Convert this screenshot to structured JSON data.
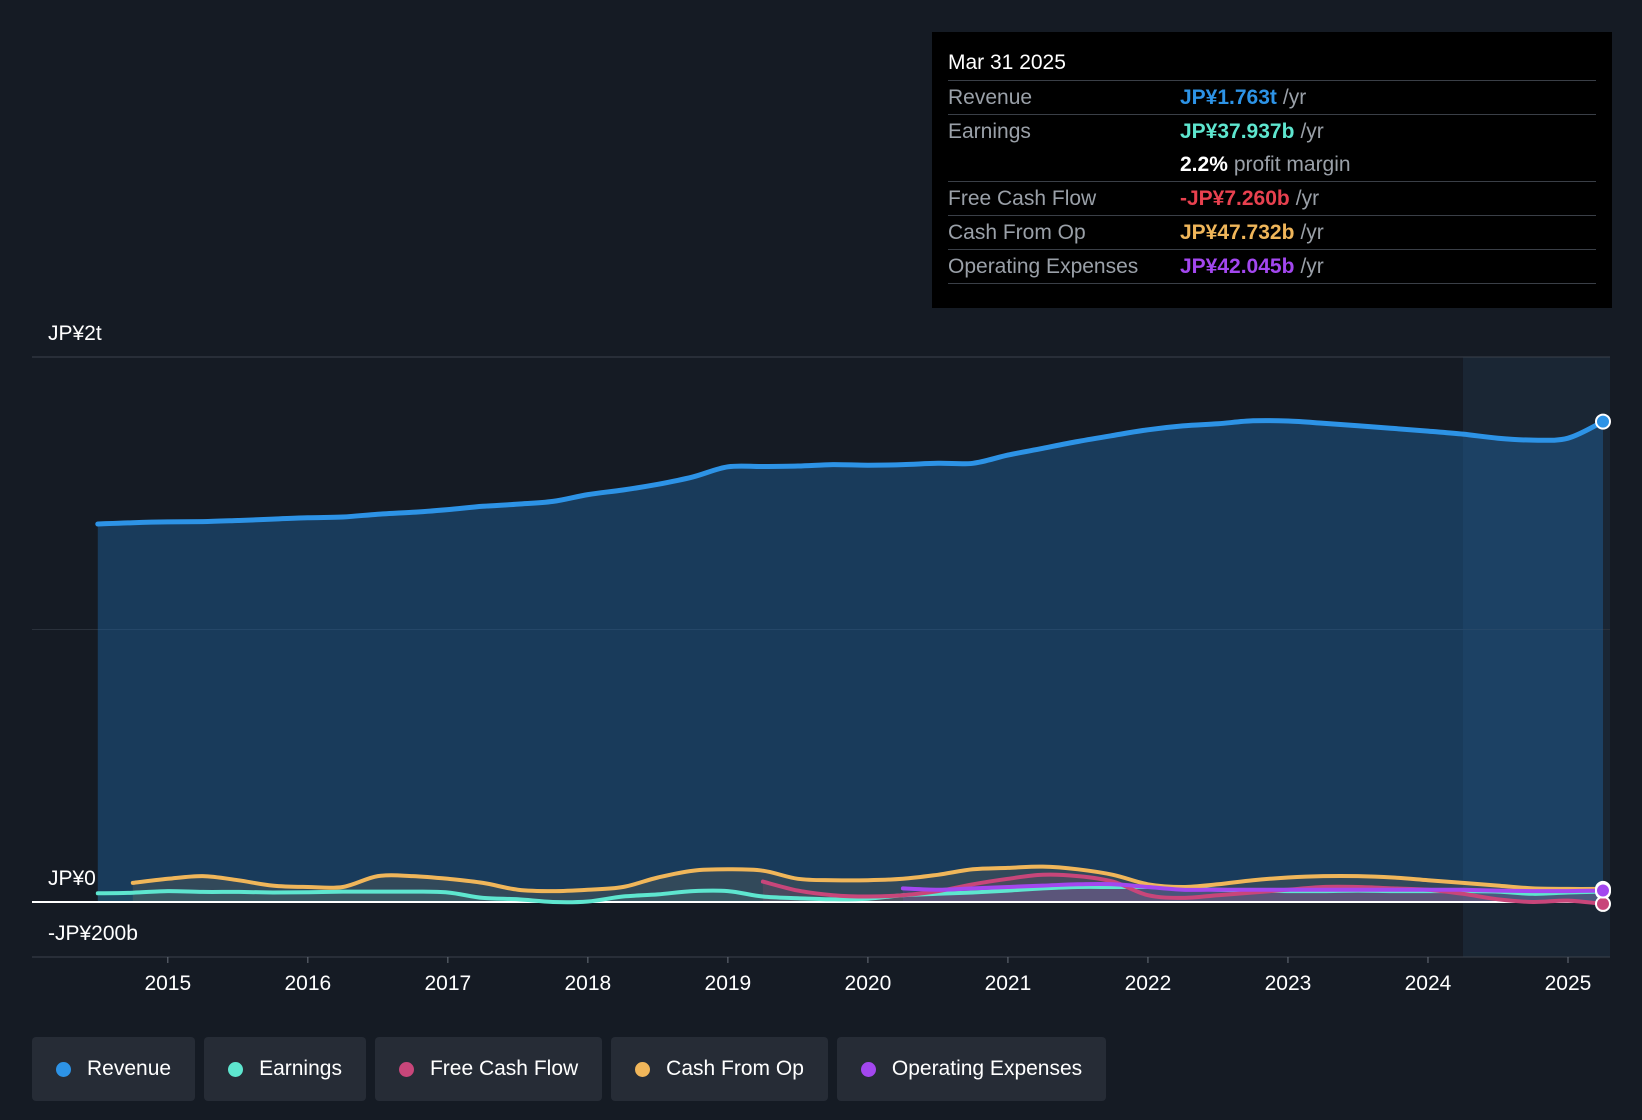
{
  "tooltip": {
    "date": "Mar 31 2025",
    "rows": [
      {
        "label": "Revenue",
        "value": "JP¥1.763t",
        "unit": "/yr",
        "color": "#2d93e6"
      },
      {
        "label": "Earnings",
        "value": "JP¥37.937b",
        "unit": "/yr",
        "color": "#5ee6cf"
      },
      {
        "label": "",
        "value": "2.2%",
        "unit": "profit margin",
        "color": "#ffffff"
      },
      {
        "label": "Free Cash Flow",
        "value": "-JP¥7.260b",
        "unit": "/yr",
        "color": "#e8414f"
      },
      {
        "label": "Cash From Op",
        "value": "JP¥47.732b",
        "unit": "/yr",
        "color": "#f0b65a"
      },
      {
        "label": "Operating Expenses",
        "value": "JP¥42.045b",
        "unit": "/yr",
        "color": "#a347ef"
      }
    ]
  },
  "legend": [
    {
      "label": "Revenue",
      "color": "#2d93e6"
    },
    {
      "label": "Earnings",
      "color": "#5ee6cf"
    },
    {
      "label": "Free Cash Flow",
      "color": "#c8467a"
    },
    {
      "label": "Cash From Op",
      "color": "#f0b65a"
    },
    {
      "label": "Operating Expenses",
      "color": "#a347ef"
    }
  ],
  "chart_data": {
    "type": "area",
    "title": "",
    "xlabel": "",
    "ylabel": "",
    "x_ticks": [
      "2015",
      "2016",
      "2017",
      "2018",
      "2019",
      "2020",
      "2021",
      "2022",
      "2023",
      "2024",
      "2025"
    ],
    "y_tick_labels": [
      {
        "label": "JP¥2t",
        "value": 2000
      },
      {
        "label": "JP¥0",
        "value": 0
      },
      {
        "label": "-JP¥200b",
        "value": -200
      }
    ],
    "xlim": [
      2014.03,
      2025.3
    ],
    "ylim": [
      -200,
      2000
    ],
    "units": "JP¥ billions",
    "forecast_start": 2024.25,
    "series": [
      {
        "name": "Revenue",
        "color": "#2d93e6",
        "x": [
          2014.5,
          2014.75,
          2015.0,
          2015.25,
          2015.5,
          2015.75,
          2016.0,
          2016.25,
          2016.5,
          2016.75,
          2017.0,
          2017.25,
          2017.5,
          2017.75,
          2018.0,
          2018.25,
          2018.5,
          2018.75,
          2019.0,
          2019.25,
          2019.5,
          2019.75,
          2020.0,
          2020.25,
          2020.5,
          2020.75,
          2021.0,
          2021.25,
          2021.5,
          2021.75,
          2022.0,
          2022.25,
          2022.5,
          2022.75,
          2023.0,
          2023.25,
          2023.5,
          2023.75,
          2024.0,
          2024.25,
          2024.5,
          2024.75,
          2025.0,
          2025.25
        ],
        "values": [
          1387,
          1392,
          1395,
          1396,
          1400,
          1405,
          1410,
          1413,
          1423,
          1430,
          1440,
          1452,
          1460,
          1470,
          1495,
          1512,
          1533,
          1560,
          1597,
          1598,
          1600,
          1605,
          1603,
          1605,
          1610,
          1610,
          1640,
          1665,
          1690,
          1712,
          1733,
          1747,
          1755,
          1766,
          1765,
          1757,
          1748,
          1738,
          1728,
          1717,
          1702,
          1695,
          1702,
          1763
        ]
      },
      {
        "name": "Earnings",
        "color": "#5ee6cf",
        "x": [
          2014.5,
          2014.75,
          2015.0,
          2015.25,
          2015.5,
          2015.75,
          2016.0,
          2016.25,
          2016.5,
          2016.75,
          2017.0,
          2017.25,
          2017.5,
          2017.75,
          2018.0,
          2018.25,
          2018.5,
          2018.75,
          2019.0,
          2019.25,
          2019.5,
          2019.75,
          2020.0,
          2020.25,
          2020.5,
          2020.75,
          2021.0,
          2021.25,
          2021.5,
          2021.75,
          2022.0,
          2022.25,
          2022.5,
          2022.75,
          2023.0,
          2023.25,
          2023.5,
          2023.75,
          2024.0,
          2024.25,
          2024.5,
          2024.75,
          2025.0,
          2025.25
        ],
        "values": [
          32,
          34,
          40,
          37,
          37,
          35,
          36,
          38,
          38,
          38,
          35,
          15,
          10,
          0,
          2,
          20,
          28,
          40,
          40,
          20,
          14,
          10,
          12,
          25,
          30,
          35,
          42,
          50,
          55,
          55,
          55,
          50,
          45,
          42,
          40,
          40,
          42,
          40,
          40,
          40,
          38,
          30,
          35,
          38
        ]
      },
      {
        "name": "Free Cash Flow",
        "color": "#c8467a",
        "x": [
          2019.25,
          2019.5,
          2019.75,
          2020.0,
          2020.25,
          2020.5,
          2020.75,
          2021.0,
          2021.25,
          2021.5,
          2021.75,
          2022.0,
          2022.25,
          2022.5,
          2022.75,
          2023.0,
          2023.25,
          2023.5,
          2023.75,
          2024.0,
          2024.25,
          2024.5,
          2024.75,
          2025.0,
          2025.25
        ],
        "values": [
          75,
          42,
          25,
          20,
          25,
          40,
          65,
          85,
          100,
          95,
          75,
          25,
          15,
          25,
          35,
          45,
          55,
          55,
          50,
          45,
          30,
          10,
          0,
          5,
          -7
        ]
      },
      {
        "name": "Cash From Op",
        "color": "#f0b65a",
        "x": [
          2014.75,
          2015.0,
          2015.25,
          2015.5,
          2015.75,
          2016.0,
          2016.25,
          2016.5,
          2016.75,
          2017.0,
          2017.25,
          2017.5,
          2017.75,
          2018.0,
          2018.25,
          2018.5,
          2018.75,
          2019.0,
          2019.25,
          2019.5,
          2019.75,
          2020.0,
          2020.25,
          2020.5,
          2020.75,
          2021.0,
          2021.25,
          2021.5,
          2021.75,
          2022.0,
          2022.25,
          2022.5,
          2022.75,
          2023.0,
          2023.25,
          2023.5,
          2023.75,
          2024.0,
          2024.25,
          2024.5,
          2024.75,
          2025.0,
          2025.25
        ],
        "values": [
          70,
          85,
          95,
          80,
          60,
          55,
          55,
          95,
          95,
          85,
          70,
          45,
          40,
          45,
          55,
          90,
          115,
          120,
          115,
          85,
          80,
          80,
          85,
          100,
          120,
          125,
          130,
          120,
          100,
          65,
          55,
          65,
          80,
          90,
          95,
          95,
          90,
          80,
          70,
          60,
          50,
          48,
          48
        ]
      },
      {
        "name": "Operating Expenses",
        "color": "#a347ef",
        "x": [
          2020.25,
          2020.5,
          2020.75,
          2021.0,
          2021.25,
          2021.5,
          2021.75,
          2022.0,
          2022.25,
          2022.5,
          2022.75,
          2023.0,
          2023.25,
          2023.5,
          2023.75,
          2024.0,
          2024.25,
          2024.5,
          2024.75,
          2025.0,
          2025.25
        ],
        "values": [
          50,
          45,
          50,
          55,
          60,
          65,
          65,
          55,
          45,
          45,
          45,
          45,
          45,
          45,
          45,
          45,
          45,
          42,
          40,
          40,
          42
        ]
      }
    ]
  }
}
